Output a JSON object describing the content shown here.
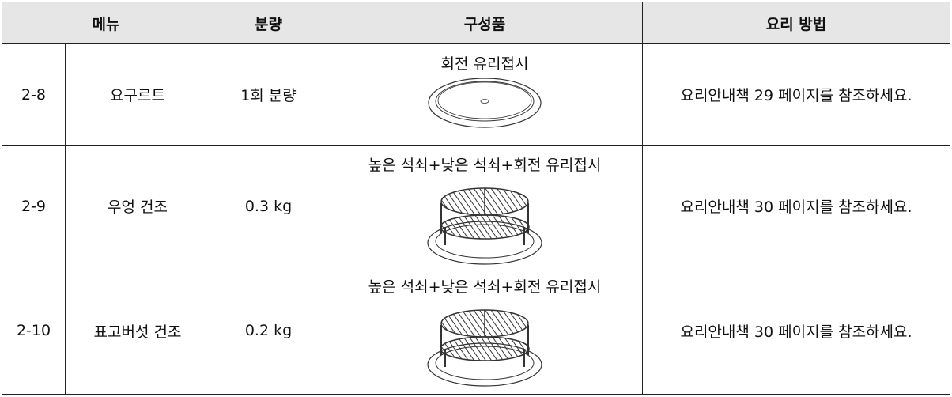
{
  "table": {
    "header": [
      "메뉴",
      "분량",
      "구성품",
      "요리 방법"
    ],
    "rows": [
      [
        "2-8",
        "요구르트",
        "1회 분량",
        "회전 유리접시",
        "요리안내책 29 페이지를 참조하세요."
      ],
      [
        "2-9",
        "우엉 건조",
        "0.3 kg",
        "높은 석쇠+낮은 석쇠+회전 유리접시",
        "요리안내책 30 페이지를 참조하세요."
      ],
      [
        "2-10",
        "표고버섯 건조",
        "0.2 kg",
        "높은 석쇠+낮은 석쇠+회전 유리접시",
        "요리안내책 30 페이지를 참조하세요."
      ]
    ]
  }
}
